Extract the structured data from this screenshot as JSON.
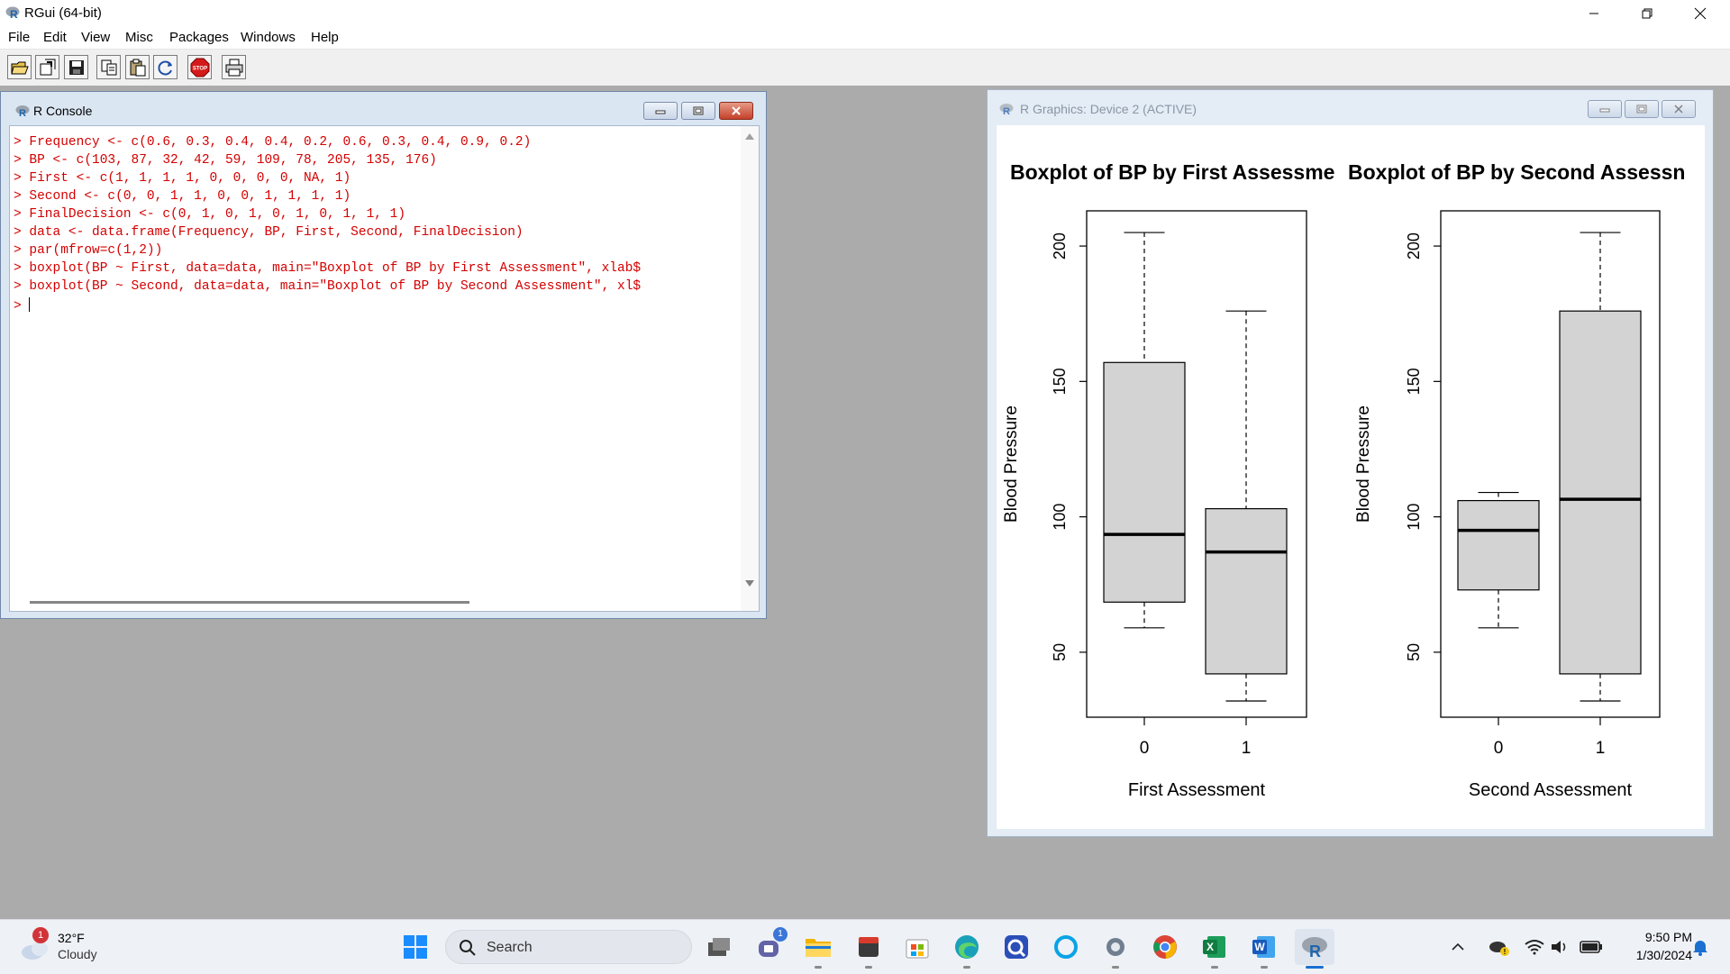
{
  "app": {
    "title": "RGui (64-bit)"
  },
  "menu": [
    "File",
    "Edit",
    "View",
    "Misc",
    "Packages",
    "Windows",
    "Help"
  ],
  "toolbar": {
    "buttons": [
      "open-script",
      "load-workspace",
      "save-workspace",
      "copy",
      "paste",
      "copy-paste",
      "stop",
      "print"
    ],
    "stop_label": "STOP"
  },
  "console": {
    "title": "R Console",
    "prompt": ">",
    "lines": [
      "> Frequency <- c(0.6, 0.3, 0.4, 0.4, 0.2, 0.6, 0.3, 0.4, 0.9, 0.2)",
      "> BP <- c(103, 87, 32, 42, 59, 109, 78, 205, 135, 176)",
      "> First <- c(1, 1, 1, 1, 0, 0, 0, 0, NA, 1)",
      "> Second <- c(0, 0, 1, 1, 0, 0, 1, 1, 1, 1)",
      "> FinalDecision <- c(0, 1, 0, 1, 0, 1, 0, 1, 1, 1)",
      "> data <- data.frame(Frequency, BP, First, Second, FinalDecision)",
      "> par(mfrow=c(1,2))",
      "> boxplot(BP ~ First, data=data, main=\"Boxplot of BP by First Assessment\", xlab$",
      "> boxplot(BP ~ Second, data=data, main=\"Boxplot of BP by Second Assessment\", xl$"
    ]
  },
  "graphics": {
    "title": "R Graphics: Device 2 (ACTIVE)"
  },
  "chart_data": [
    {
      "type": "box",
      "title": "Boxplot of BP by First Assessme",
      "xlabel": "First Assessment",
      "ylabel": "Blood Pressure",
      "yticks": [
        "50",
        "100",
        "150",
        "200"
      ],
      "ylim": [
        26,
        213
      ],
      "categories": [
        "0",
        "1"
      ],
      "boxes": [
        {
          "min": 59,
          "q1": 68.5,
          "median": 93.5,
          "q3": 157,
          "max": 205
        },
        {
          "min": 32,
          "q1": 42,
          "median": 87,
          "q3": 103,
          "max": 176
        }
      ]
    },
    {
      "type": "box",
      "title": "Boxplot of BP by Second Assessn",
      "xlabel": "Second Assessment",
      "ylabel": "Blood Pressure",
      "yticks": [
        "50",
        "100",
        "150",
        "200"
      ],
      "ylim": [
        26,
        213
      ],
      "categories": [
        "0",
        "1"
      ],
      "boxes": [
        {
          "min": 59,
          "q1": 73,
          "median": 95,
          "q3": 106,
          "max": 109
        },
        {
          "min": 32,
          "q1": 42,
          "median": 106.5,
          "q3": 176,
          "max": 205
        }
      ]
    }
  ],
  "taskbar": {
    "weather_temp": "32°F",
    "weather_desc": "Cloudy",
    "weather_badge": "1",
    "search_label": "Search",
    "chat_badge": "1",
    "time": "9:50 PM",
    "date": "1/30/2024",
    "excel_letter": "X",
    "word_letter": "W"
  },
  "colors": {
    "console_text": "#d40000",
    "box_fill": "#d3d3d3"
  }
}
